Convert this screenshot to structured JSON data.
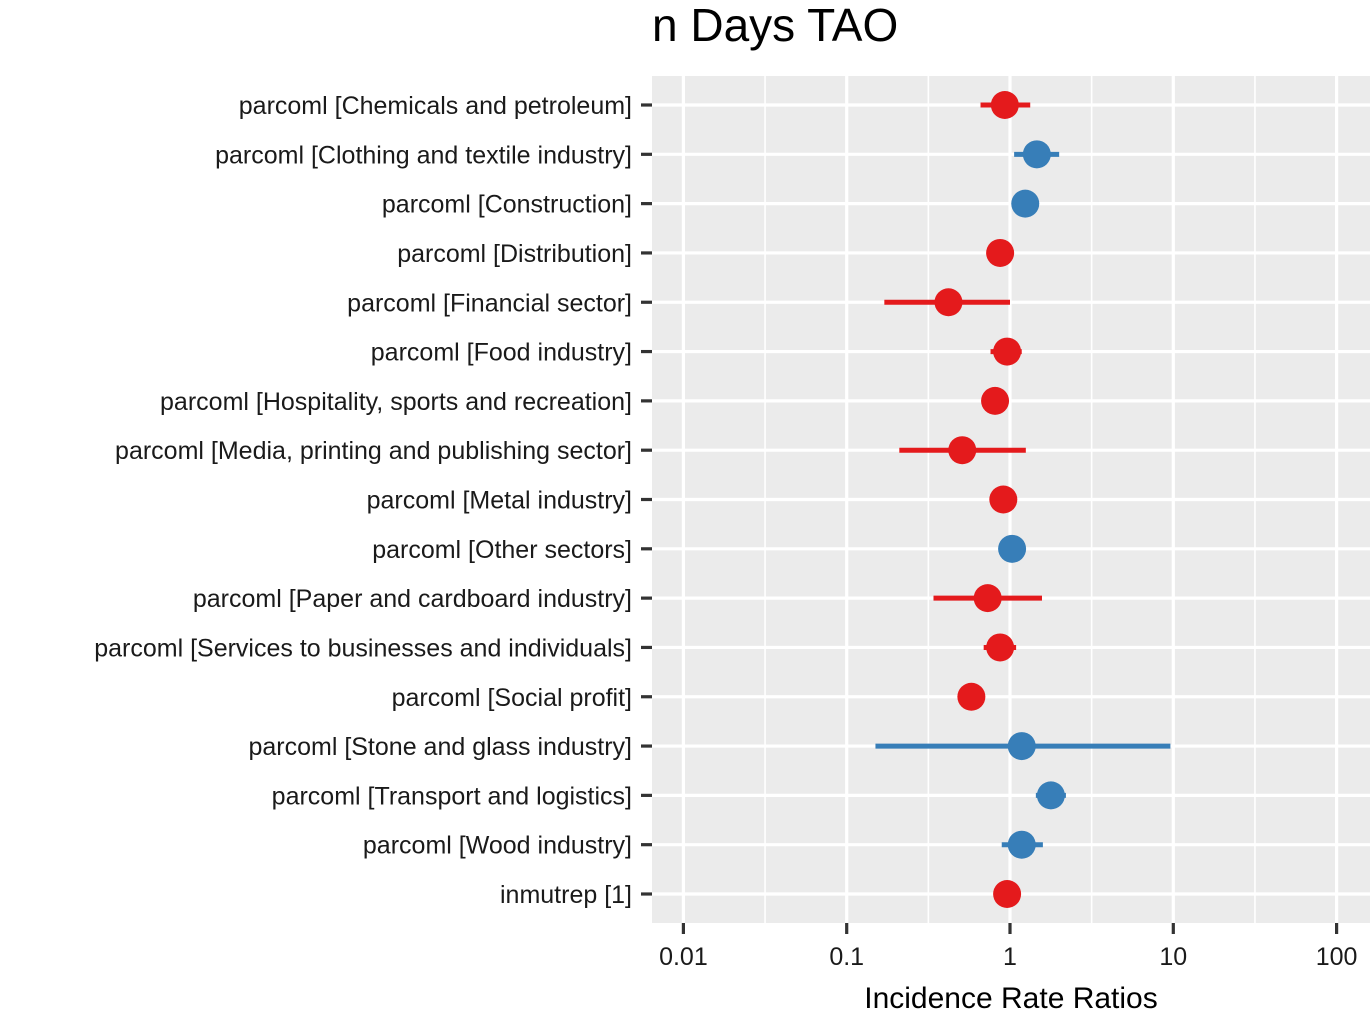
{
  "chart_data": {
    "type": "scatter",
    "subtype": "forest-plot",
    "title": "n Days TAO",
    "xlabel": "Incidence Rate Ratios",
    "ylabel": "",
    "xscale": "log10",
    "xlim": [
      0.0065,
      150
    ],
    "xticks": [
      0.01,
      0.1,
      1,
      10,
      100
    ],
    "xtick_labels": [
      "0.01",
      "0.1",
      "1",
      "10",
      "100"
    ],
    "grid": true,
    "legend": "none",
    "colors": {
      "negative": "#E41A1C",
      "positive": "#377EB8",
      "panel": "#EBEBEB",
      "grid": "#FFFFFF",
      "tick": "#333333"
    },
    "rows": [
      {
        "label": "parcoml [Chemicals and petroleum]",
        "estimate": 0.93,
        "ci_low": 0.66,
        "ci_high": 1.33,
        "direction": "negative"
      },
      {
        "label": "parcoml [Clothing and textile industry]",
        "estimate": 1.46,
        "ci_low": 1.06,
        "ci_high": 2.0,
        "direction": "positive"
      },
      {
        "label": "parcoml [Construction]",
        "estimate": 1.24,
        "ci_low": 1.22,
        "ci_high": 1.26,
        "direction": "positive"
      },
      {
        "label": "parcoml [Distribution]",
        "estimate": 0.87,
        "ci_low": 0.86,
        "ci_high": 0.88,
        "direction": "negative"
      },
      {
        "label": "parcoml [Financial sector]",
        "estimate": 0.42,
        "ci_low": 0.17,
        "ci_high": 1.0,
        "direction": "negative"
      },
      {
        "label": "parcoml [Food industry]",
        "estimate": 0.96,
        "ci_low": 0.76,
        "ci_high": 1.18,
        "direction": "negative"
      },
      {
        "label": "parcoml [Hospitality, sports and recreation]",
        "estimate": 0.81,
        "ci_low": 0.8,
        "ci_high": 0.82,
        "direction": "negative"
      },
      {
        "label": "parcoml [Media, printing and publishing sector]",
        "estimate": 0.51,
        "ci_low": 0.21,
        "ci_high": 1.25,
        "direction": "negative"
      },
      {
        "label": "parcoml [Metal industry]",
        "estimate": 0.91,
        "ci_low": 0.9,
        "ci_high": 0.92,
        "direction": "negative"
      },
      {
        "label": "parcoml [Other sectors]",
        "estimate": 1.03,
        "ci_low": 1.02,
        "ci_high": 1.04,
        "direction": "positive"
      },
      {
        "label": "parcoml [Paper and cardboard industry]",
        "estimate": 0.73,
        "ci_low": 0.34,
        "ci_high": 1.57,
        "direction": "negative"
      },
      {
        "label": "parcoml [Services to businesses and individuals]",
        "estimate": 0.87,
        "ci_low": 0.69,
        "ci_high": 1.09,
        "direction": "negative"
      },
      {
        "label": "parcoml [Social profit]",
        "estimate": 0.58,
        "ci_low": 0.57,
        "ci_high": 0.59,
        "direction": "negative"
      },
      {
        "label": "parcoml [Stone and glass industry]",
        "estimate": 1.18,
        "ci_low": 0.15,
        "ci_high": 9.6,
        "direction": "positive"
      },
      {
        "label": "parcoml [Transport and logistics]",
        "estimate": 1.78,
        "ci_low": 1.44,
        "ci_high": 2.2,
        "direction": "positive"
      },
      {
        "label": "parcoml [Wood industry]",
        "estimate": 1.18,
        "ci_low": 0.89,
        "ci_high": 1.59,
        "direction": "positive"
      },
      {
        "label": "inmutrep [1]",
        "estimate": 0.96,
        "ci_low": 0.95,
        "ci_high": 0.97,
        "direction": "negative"
      }
    ]
  }
}
